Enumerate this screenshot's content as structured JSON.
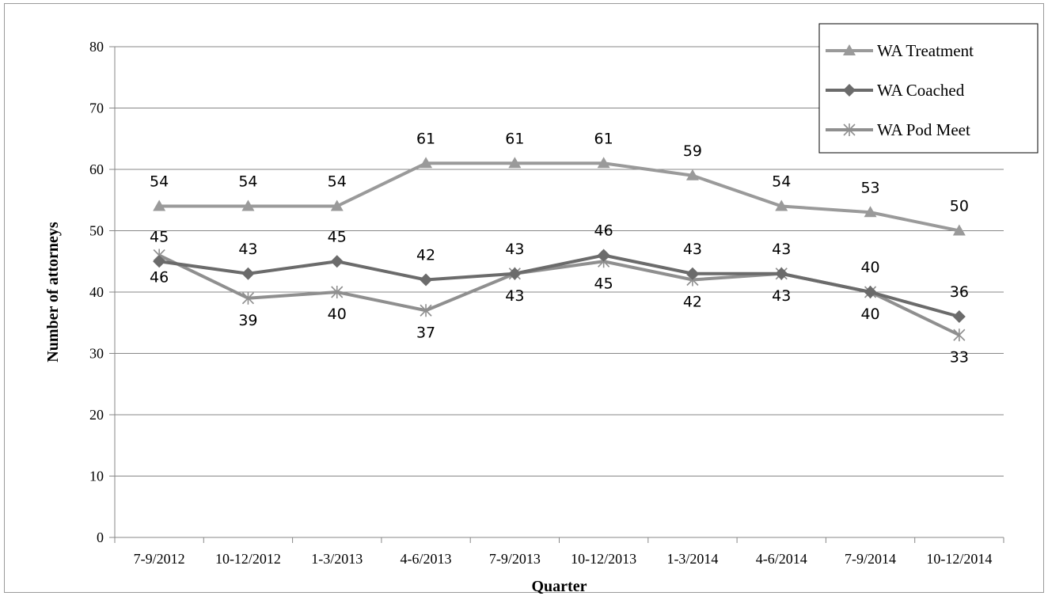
{
  "chart_data": {
    "type": "line",
    "categories": [
      "7-9/2012",
      "10-12/2012",
      "1-3/2013",
      "4-6/2013",
      "7-9/2013",
      "10-12/2013",
      "1-3/2014",
      "4-6/2014",
      "7-9/2014",
      "10-12/2014"
    ],
    "series": [
      {
        "name": "WA Treatment",
        "values": [
          54,
          54,
          54,
          61,
          61,
          61,
          59,
          54,
          53,
          50
        ],
        "color": "#9a9a9a",
        "marker": "triangle",
        "label_position": "above"
      },
      {
        "name": "WA Coached",
        "values": [
          45,
          43,
          45,
          42,
          43,
          46,
          43,
          43,
          40,
          36
        ],
        "color": "#6b6b6b",
        "marker": "diamond",
        "label_position": "above"
      },
      {
        "name": "WA Pod Meet",
        "values": [
          46,
          39,
          40,
          37,
          43,
          45,
          42,
          43,
          40,
          33
        ],
        "color": "#8f8f8f",
        "marker": "asterisk",
        "label_position": "below"
      }
    ],
    "xlabel": "Quarter",
    "ylabel": "Number of attorneys",
    "ylim": [
      0,
      80
    ],
    "yticks": [
      0,
      10,
      20,
      30,
      40,
      50,
      60,
      70,
      80
    ],
    "grid": "horizontal",
    "legend": "top-right"
  }
}
